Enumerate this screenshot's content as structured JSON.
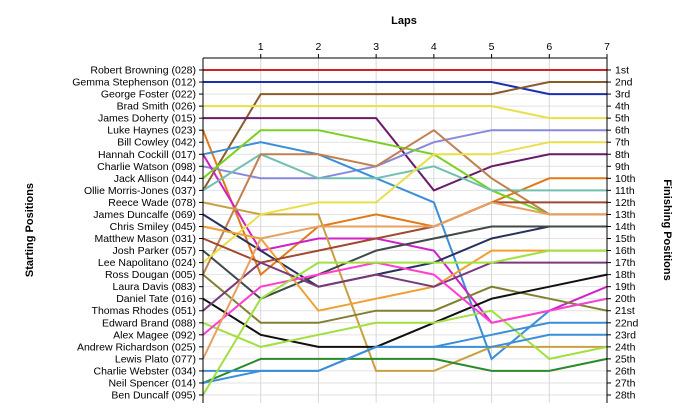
{
  "chart_data": {
    "type": "line",
    "title": "",
    "xlabel": "Laps",
    "ylabel_left": "Starting Positions",
    "ylabel_right": "Finishing Positions",
    "x": [
      0,
      1,
      2,
      3,
      4,
      5,
      6,
      7
    ],
    "x_tick_labels": [
      "1",
      "2",
      "3",
      "4",
      "5",
      "6",
      "7"
    ],
    "ylim": [
      1,
      28
    ],
    "y_inverted": true,
    "grid": true,
    "start_labels": [
      "Robert Browning (028)",
      "Gemma Stephenson (012)",
      "George Foster (022)",
      "Brad Smith (026)",
      "James Doherty (015)",
      "Luke Haynes (023)",
      "Bill Cowley (042)",
      "Hannah Cockill (017)",
      "Charlie Watson (098)",
      "Jack Allison (044)",
      "Ollie Morris-Jones (037)",
      "Reece Wade (078)",
      "James Duncalfe (069)",
      "Chris Smiley (045)",
      "Matthew Mason (031)",
      "Josh Parker (057)",
      "Lee Napolitano (024)",
      "Ross Dougan (005)",
      "Laura Davis (083)",
      "Daniel Tate (016)",
      "Thomas Rhodes (051)",
      "Edward Brand (088)",
      "Alex Magee (092)",
      "Andrew Richardson (025)",
      "Lewis Plato (077)",
      "Charlie Webster (034)",
      "Neil Spencer (014)",
      "Ben Duncalf (095)"
    ],
    "finish_labels": [
      "1st",
      "2nd",
      "3rd",
      "4th",
      "5th",
      "6th",
      "7th",
      "8th",
      "9th",
      "10th",
      "11th",
      "12th",
      "13th",
      "14th",
      "15th",
      "16th",
      "17th",
      "18th",
      "19th",
      "20th",
      "21st",
      "22nd",
      "23rd",
      "24th",
      "25th",
      "26th",
      "27th",
      "28th"
    ],
    "series": [
      {
        "color": "#d42020",
        "values": [
          1,
          1,
          1,
          1,
          1,
          1,
          1,
          1
        ]
      },
      {
        "color": "#1a2fb0",
        "values": [
          2,
          2,
          2,
          2,
          2,
          2,
          3,
          3
        ]
      },
      {
        "color": "#8b5a2b",
        "values": [
          11,
          3,
          3,
          3,
          3,
          3,
          2,
          2
        ]
      },
      {
        "color": "#e8e04a",
        "values": [
          4,
          4,
          4,
          4,
          4,
          4,
          5,
          5
        ]
      },
      {
        "color": "#6a1a6a",
        "values": [
          5,
          5,
          5,
          5,
          11,
          9,
          8,
          8
        ]
      },
      {
        "color": "#e07a1a",
        "values": [
          6,
          18,
          14,
          13,
          14,
          12,
          10,
          10
        ]
      },
      {
        "color": "#8888dd",
        "values": [
          9,
          10,
          10,
          9,
          7,
          6,
          6,
          6
        ]
      },
      {
        "color": "#3a8fd8",
        "values": [
          8,
          7,
          8,
          10,
          12,
          25,
          21,
          20
        ]
      },
      {
        "color": "#d020c8",
        "values": [
          8,
          16,
          15,
          15,
          16,
          22,
          21,
          19
        ]
      },
      {
        "color": "#7ad020",
        "values": [
          10,
          6,
          6,
          7,
          8,
          11,
          13,
          13
        ]
      },
      {
        "color": "#70c0b0",
        "values": [
          11,
          8,
          10,
          10,
          9,
          11,
          11,
          11
        ]
      },
      {
        "color": "#c08050",
        "values": [
          18,
          8,
          8,
          9,
          6,
          10,
          13,
          13
        ]
      },
      {
        "color": "#283060",
        "values": [
          13,
          16,
          19,
          18,
          17,
          15,
          14,
          14
        ]
      },
      {
        "color": "#c8a040",
        "values": [
          12,
          13,
          13,
          26,
          26,
          24,
          24,
          24
        ]
      },
      {
        "color": "#404848",
        "values": [
          16,
          20,
          18,
          16,
          15,
          14,
          14,
          14
        ]
      },
      {
        "color": "#e8e04a",
        "values": [
          17,
          13,
          12,
          12,
          8,
          8,
          7,
          7
        ]
      },
      {
        "color": "#f0a030",
        "values": [
          14,
          15,
          21,
          20,
          19,
          16,
          16,
          16
        ]
      },
      {
        "color": "#a04830",
        "values": [
          15,
          17,
          16,
          15,
          14,
          12,
          12,
          12
        ]
      },
      {
        "color": "#808030",
        "values": [
          18,
          22,
          22,
          21,
          21,
          19,
          20,
          21
        ]
      },
      {
        "color": "#101010",
        "values": [
          20,
          23,
          24,
          24,
          22,
          20,
          19,
          18
        ]
      },
      {
        "color": "#7a3a7a",
        "values": [
          21,
          17,
          19,
          18,
          19,
          17,
          17,
          17
        ]
      },
      {
        "color": "#a0e040",
        "values": [
          22,
          24,
          23,
          22,
          22,
          21,
          25,
          24
        ]
      },
      {
        "color": "#ff3fd0",
        "values": [
          23,
          19,
          18,
          17,
          18,
          22,
          21,
          20
        ]
      },
      {
        "color": "#2a8a2a",
        "values": [
          27,
          25,
          25,
          25,
          25,
          26,
          26,
          25
        ]
      },
      {
        "color": "#e8a060",
        "values": [
          25,
          15,
          14,
          14,
          14,
          12,
          13,
          13
        ]
      },
      {
        "color": "#3a8fd8",
        "values": [
          26,
          26,
          26,
          24,
          24,
          24,
          23,
          23
        ]
      },
      {
        "color": "#3a8fd8",
        "values": [
          27,
          26,
          26,
          24,
          24,
          23,
          22,
          22
        ]
      },
      {
        "color": "#a0e040",
        "values": [
          28,
          20,
          17,
          17,
          17,
          17,
          16,
          16
        ]
      }
    ]
  }
}
